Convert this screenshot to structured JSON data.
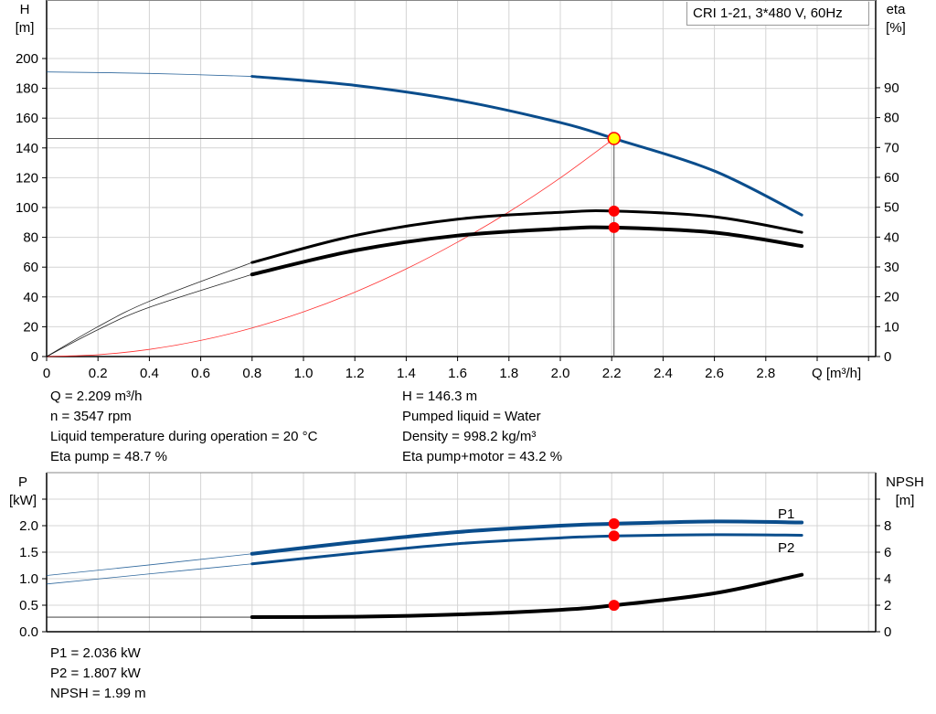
{
  "chart_data": [
    {
      "type": "line",
      "title": "CRI 1-21, 3*480 V, 60Hz",
      "xlabel": "Q [m³/h]",
      "ylabel_left": [
        "H",
        "[m]"
      ],
      "ylabel_right": [
        "eta",
        "[%]"
      ],
      "xlim": [
        0,
        3.2
      ],
      "ylim_left": [
        0,
        200
      ],
      "ylim_right": [
        0,
        90
      ],
      "grid": true,
      "x_ticks": [
        "0",
        "0.2",
        "0.4",
        "0.6",
        "0.8",
        "1.0",
        "1.2",
        "1.4",
        "1.6",
        "1.8",
        "2.0",
        "2.2",
        "2.4",
        "2.6",
        "2.8"
      ],
      "y_ticks_left": [
        "0",
        "20",
        "40",
        "60",
        "80",
        "100",
        "120",
        "140",
        "160",
        "180",
        "200"
      ],
      "y_ticks_right": [
        "0",
        "10",
        "20",
        "30",
        "40",
        "50",
        "60",
        "70",
        "80",
        "90"
      ],
      "series": [
        {
          "key": "H",
          "axis": "left",
          "color": "#0a4d8c",
          "thin_until": 0.8,
          "x": [
            0,
            0.4,
            0.8,
            1.2,
            1.6,
            2.0,
            2.209,
            2.6,
            2.94
          ],
          "y": [
            191,
            190,
            188,
            182,
            172,
            157,
            146.3,
            124.5,
            95
          ]
        },
        {
          "key": "eta_pump",
          "axis": "right",
          "color": "#000000",
          "thin_until": 0.8,
          "x": [
            0,
            0.2,
            0.4,
            0.8,
            1.2,
            1.6,
            2.0,
            2.209,
            2.6,
            2.94
          ],
          "y": [
            0,
            10,
            18.5,
            31.5,
            40.5,
            46,
            48.3,
            48.7,
            46.8,
            41.6
          ]
        },
        {
          "key": "eta_pump_motor",
          "axis": "right",
          "color": "#000000",
          "thin_until": 0.8,
          "bold": true,
          "x": [
            0,
            0.2,
            0.4,
            0.8,
            1.2,
            1.6,
            2.0,
            2.209,
            2.6,
            2.94
          ],
          "y": [
            0,
            9,
            16.5,
            27.5,
            35.5,
            40.5,
            42.8,
            43.2,
            41.5,
            37
          ]
        },
        {
          "key": "system",
          "axis": "left",
          "color": "#ff3030",
          "thin": true,
          "x": [
            0,
            0.2,
            0.4,
            0.6,
            0.8,
            1.0,
            1.2,
            1.4,
            1.6,
            1.8,
            2.0,
            2.209
          ],
          "y": [
            0,
            1.2,
            4.8,
            10.8,
            19.2,
            30,
            43.2,
            58.8,
            76.8,
            97.1,
            119.9,
            146.3
          ]
        }
      ],
      "operating_point": {
        "Q": 2.209,
        "H": 146.3,
        "eta_pump": 48.7,
        "eta_pump_motor": 43.2
      }
    },
    {
      "type": "line",
      "ylabel_left": [
        "P",
        "[kW]"
      ],
      "ylabel_right": [
        "NPSH",
        "[m]"
      ],
      "xlim": [
        0,
        3.2
      ],
      "ylim_left": [
        0,
        3.0
      ],
      "ylim_right": [
        0,
        12
      ],
      "grid": true,
      "y_ticks_left": [
        "0.0",
        "0.5",
        "1.0",
        "1.5",
        "2.0",
        ""
      ],
      "y_ticks_right": [
        "0",
        "2",
        "4",
        "6",
        "8",
        ""
      ],
      "series": [
        {
          "name": "P1",
          "axis": "left",
          "color": "#0a4d8c",
          "thin_until": 0.8,
          "bold": true,
          "x": [
            0,
            0.4,
            0.8,
            1.2,
            1.6,
            2.0,
            2.209,
            2.6,
            2.94
          ],
          "y": [
            1.06,
            1.26,
            1.47,
            1.69,
            1.88,
            2.0,
            2.036,
            2.08,
            2.06
          ]
        },
        {
          "name": "P2",
          "axis": "left",
          "color": "#0a4d8c",
          "thin_until": 0.8,
          "x": [
            0,
            0.4,
            0.8,
            1.2,
            1.6,
            2.0,
            2.209,
            2.6,
            2.94
          ],
          "y": [
            0.9,
            1.09,
            1.28,
            1.48,
            1.66,
            1.77,
            1.807,
            1.83,
            1.82
          ]
        },
        {
          "key": "NPSH",
          "axis": "right",
          "color": "#000000",
          "thin_until": 0.8,
          "bold": true,
          "x": [
            0,
            0.4,
            0.8,
            1.2,
            1.6,
            2.0,
            2.209,
            2.6,
            2.94
          ],
          "y": [
            1.1,
            1.1,
            1.1,
            1.13,
            1.3,
            1.65,
            1.99,
            2.9,
            4.3
          ]
        }
      ],
      "operating_point": {
        "Q": 2.209,
        "P1": 2.036,
        "P2": 1.807,
        "NPSH": 1.99
      }
    }
  ],
  "info": {
    "col1": [
      "Q = 2.209 m³/h",
      "n = 3547 rpm",
      "Liquid temperature during operation = 20 °C",
      "Eta pump = 48.7 %"
    ],
    "col2": [
      "H = 146.3 m",
      "Pumped liquid = Water",
      "Density = 998.2 kg/m³",
      "Eta pump+motor = 43.2 %"
    ],
    "bottom": [
      "P1 = 2.036 kW",
      "P2 = 1.807 kW",
      "NPSH = 1.99 m"
    ]
  },
  "colors": {
    "blue": "#0a4d8c",
    "red": "#ff0000",
    "op_point": "#ffff00",
    "grid": "#d4d4d4"
  }
}
